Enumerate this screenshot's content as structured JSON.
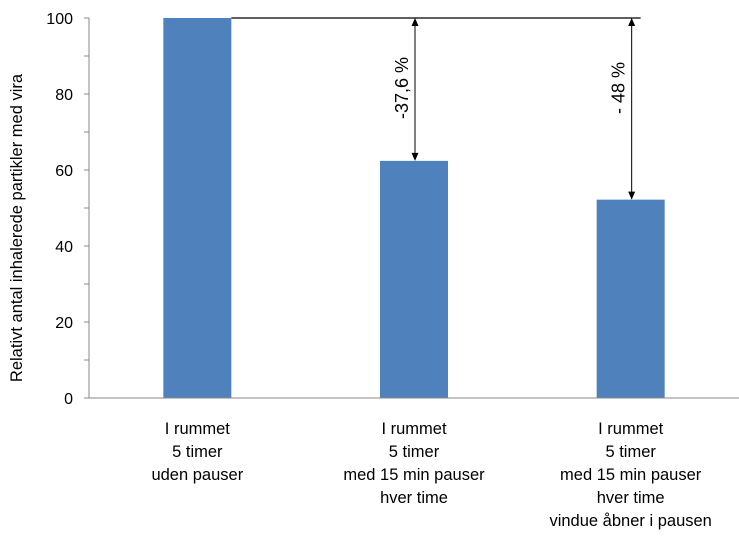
{
  "chart_data": {
    "type": "bar",
    "ylabel": "Relativt antal inhalerede partikler med vira",
    "ylim": [
      0,
      100
    ],
    "yticks": [
      0,
      20,
      40,
      60,
      80,
      100
    ],
    "minor_step": 10,
    "bar_color": "#4f81bd",
    "categories": [
      [
        "I rummet",
        "5 timer",
        "uden pauser"
      ],
      [
        "I rummet",
        "5 timer",
        "med 15 min pauser",
        "hver time"
      ],
      [
        "I rummet",
        "5 timer",
        "med 15 min pauser",
        "hver time",
        "vindue åbner i pausen"
      ]
    ],
    "values": [
      100,
      62.4,
      52.2
    ],
    "annotations": [
      {
        "category_index": 1,
        "from": 100,
        "to": 62.4,
        "text": "-37,6 %"
      },
      {
        "category_index": 2,
        "from": 100,
        "to": 52.2,
        "text": "- 48 %"
      }
    ]
  }
}
